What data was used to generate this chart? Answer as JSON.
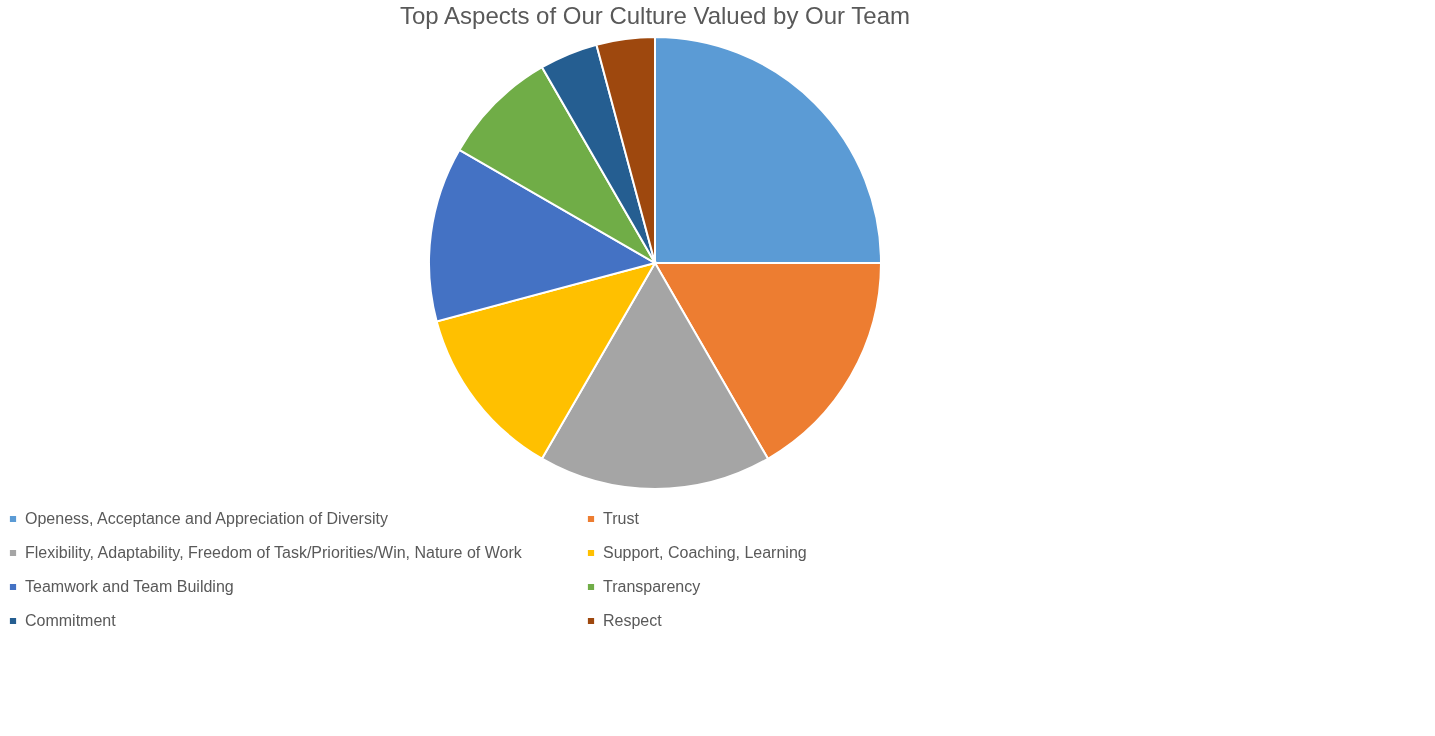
{
  "chart_data": {
    "type": "pie",
    "title": "Top Aspects of Our Culture Valued by Our Team",
    "categories": [
      "Openess, Acceptance and Appreciation of Diversity",
      "Trust",
      "Flexibility, Adaptability, Freedom of Task/Priorities/Win, Nature of Work",
      "Support, Coaching, Learning",
      "Teamwork and Team Building",
      "Transparency",
      "Commitment",
      "Respect"
    ],
    "values": [
      25,
      16.67,
      16.67,
      12.5,
      12.5,
      8.33,
      4.16,
      4.17
    ],
    "colors": [
      "#5b9bd5",
      "#ed7d31",
      "#a5a5a5",
      "#ffc000",
      "#4472c4",
      "#70ad47",
      "#255e91",
      "#9e480e"
    ],
    "legend": "bottom"
  }
}
